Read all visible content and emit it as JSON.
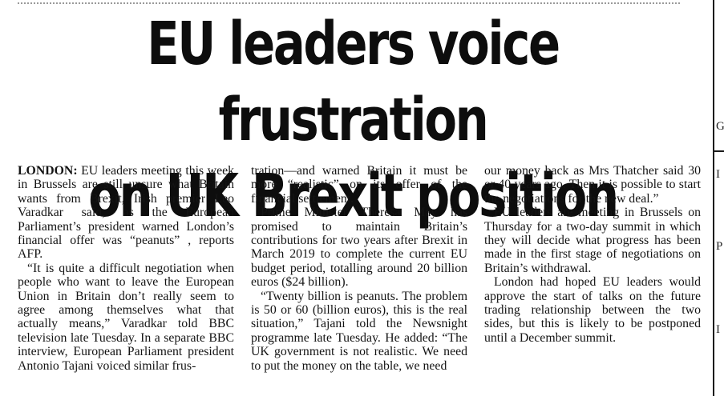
{
  "article": {
    "headline_line1": "EU leaders voice frustration",
    "headline_line2": "on UK Brexit position",
    "dateline": "LONDON:",
    "col1": [
      "EU leaders meeting this week in Brussels are still unsure what Britain wants from Brexit, Irish premier Leo Varadkar said, as the European Parliament’s president warned London’s financial offer was “peanuts” , reports AFP.",
      "“It is quite a difficult negotiation when people who want to leave the European Union in Britain don’t really seem to agree among themselves what that actually means,” Varadkar told BBC television late Tuesday. In a separate BBC interview, European Parliament president Antonio Tajani voiced similar frus-"
    ],
    "col2": [
      "tration—and warned Britain it must be more “realistic” on its offer of the financial settlement.",
      "Prime Minister Theresa May has promised to maintain Britain’s contributions for two years after Brexit in March 2019 to complete the current EU budget period, totalling around 20 billion euros ($24 billion).",
      "“Twenty billion is peanuts. The problem is 50 or 60 (billion euros), this is the real situation,” Tajani told the Newsnight programme late Tuesday. He added: “The UK government is not realistic. We need to put the money on the table, we need"
    ],
    "col3": [
      "our money back as Mrs Thatcher said 30 or 40 years ago. Then it is possible to start the negotiations for the new deal.”",
      "EU leaders are meeting in Brussels on Thursday for a two-day summit in which they will decide what progress has been made in the first stage of negotiations on Britain’s withdrawal.",
      "London had hoped EU leaders would approve the start of talks on the future trading relationship between the two sides, but this is likely to be postponed until a December summit."
    ]
  },
  "edge_fragments": [
    "G",
    "I",
    "P",
    "I"
  ]
}
